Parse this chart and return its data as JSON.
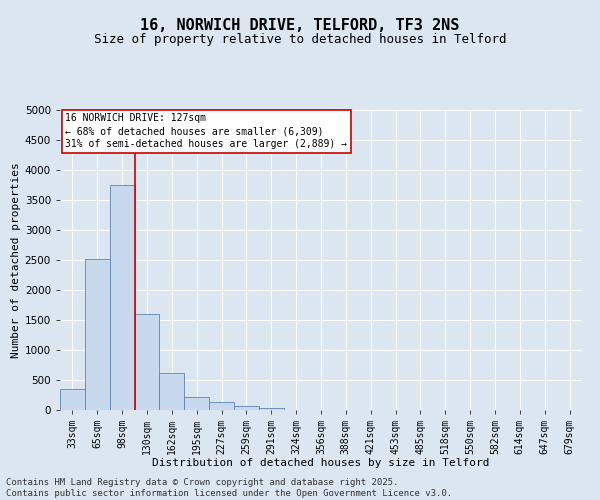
{
  "title": "16, NORWICH DRIVE, TELFORD, TF3 2NS",
  "subtitle": "Size of property relative to detached houses in Telford",
  "xlabel": "Distribution of detached houses by size in Telford",
  "ylabel": "Number of detached properties",
  "bar_labels": [
    "33sqm",
    "65sqm",
    "98sqm",
    "130sqm",
    "162sqm",
    "195sqm",
    "227sqm",
    "259sqm",
    "291sqm",
    "324sqm",
    "356sqm",
    "388sqm",
    "421sqm",
    "453sqm",
    "485sqm",
    "518sqm",
    "550sqm",
    "582sqm",
    "614sqm",
    "647sqm",
    "679sqm"
  ],
  "bar_values": [
    350,
    2520,
    3750,
    1600,
    610,
    225,
    130,
    65,
    30,
    0,
    0,
    0,
    0,
    0,
    0,
    0,
    0,
    0,
    0,
    0,
    0
  ],
  "bar_color": "#c9d9ed",
  "bar_edge_color": "#5a86b5",
  "vline_color": "#cc0000",
  "annotation_title": "16 NORWICH DRIVE: 127sqm",
  "annotation_line1": "← 68% of detached houses are smaller (6,309)",
  "annotation_line2": "31% of semi-detached houses are larger (2,889) →",
  "annotation_box_color": "#ffffff",
  "annotation_box_edge": "#cc0000",
  "ylim": [
    0,
    5000
  ],
  "yticks": [
    0,
    500,
    1000,
    1500,
    2000,
    2500,
    3000,
    3500,
    4000,
    4500,
    5000
  ],
  "background_color": "#dce6f1",
  "plot_background": "#dce6f1",
  "grid_color": "#ffffff",
  "footer": "Contains HM Land Registry data © Crown copyright and database right 2025.\nContains public sector information licensed under the Open Government Licence v3.0.",
  "title_fontsize": 11,
  "subtitle_fontsize": 9,
  "label_fontsize": 8,
  "tick_fontsize": 7,
  "footer_fontsize": 6.5,
  "annotation_fontsize": 7
}
